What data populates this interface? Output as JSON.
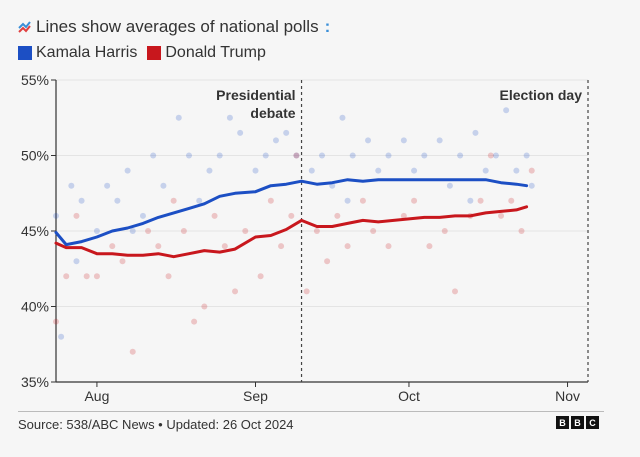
{
  "header": {
    "icon": "trend-lines-icon",
    "title": "Lines show averages of national polls",
    "colon": ":"
  },
  "legend": [
    {
      "label": "Kamala Harris",
      "color": "#1c4fc4"
    },
    {
      "label": "Donald Trump",
      "color": "#c8171d"
    }
  ],
  "footer": {
    "source": "Source: 538/ABC News • Updated: 26 Oct 2024",
    "logo": [
      "B",
      "B",
      "C"
    ]
  },
  "chart_data": {
    "type": "line",
    "title": "Lines show averages of national polls",
    "xlabel": "",
    "ylabel": "",
    "xlim": [
      "2024-07-24",
      "2024-11-05"
    ],
    "ylim": [
      35,
      55
    ],
    "yticks": [
      35,
      40,
      45,
      50,
      55
    ],
    "ytick_labels": [
      "35%",
      "40%",
      "45%",
      "50%",
      "55%"
    ],
    "xticks": [
      "2024-08-01",
      "2024-09-01",
      "2024-10-01",
      "2024-11-01"
    ],
    "xtick_labels": [
      "Aug",
      "Sep",
      "Oct",
      "Nov"
    ],
    "grid": true,
    "legend_position": "top-left",
    "annotations": [
      {
        "date": "2024-09-10",
        "label_lines": [
          "Presidential",
          "debate"
        ],
        "style": "dashed-vertical"
      },
      {
        "date": "2024-11-05",
        "label_lines": [
          "Election day"
        ],
        "style": "dashed-vertical"
      }
    ],
    "series": [
      {
        "name": "Kamala Harris",
        "color": "#1c4fc4",
        "average": [
          [
            "2024-07-24",
            44.9
          ],
          [
            "2024-07-26",
            44.1
          ],
          [
            "2024-07-29",
            44.3
          ],
          [
            "2024-08-01",
            44.6
          ],
          [
            "2024-08-04",
            45.0
          ],
          [
            "2024-08-07",
            45.2
          ],
          [
            "2024-08-10",
            45.5
          ],
          [
            "2024-08-13",
            45.9
          ],
          [
            "2024-08-16",
            46.2
          ],
          [
            "2024-08-19",
            46.5
          ],
          [
            "2024-08-22",
            46.8
          ],
          [
            "2024-08-25",
            47.3
          ],
          [
            "2024-08-28",
            47.5
          ],
          [
            "2024-09-01",
            47.6
          ],
          [
            "2024-09-04",
            48.0
          ],
          [
            "2024-09-07",
            48.1
          ],
          [
            "2024-09-10",
            48.3
          ],
          [
            "2024-09-13",
            48.1
          ],
          [
            "2024-09-16",
            48.2
          ],
          [
            "2024-09-19",
            48.4
          ],
          [
            "2024-09-22",
            48.3
          ],
          [
            "2024-09-25",
            48.4
          ],
          [
            "2024-09-28",
            48.4
          ],
          [
            "2024-10-01",
            48.4
          ],
          [
            "2024-10-04",
            48.4
          ],
          [
            "2024-10-07",
            48.4
          ],
          [
            "2024-10-10",
            48.4
          ],
          [
            "2024-10-13",
            48.4
          ],
          [
            "2024-10-16",
            48.4
          ],
          [
            "2024-10-19",
            48.2
          ],
          [
            "2024-10-22",
            48.1
          ],
          [
            "2024-10-24",
            48.0
          ]
        ],
        "polls": [
          [
            "2024-07-24",
            46
          ],
          [
            "2024-07-25",
            38
          ],
          [
            "2024-07-27",
            48
          ],
          [
            "2024-07-29",
            47
          ],
          [
            "2024-08-01",
            45
          ],
          [
            "2024-08-03",
            48
          ],
          [
            "2024-08-05",
            47
          ],
          [
            "2024-08-07",
            49
          ],
          [
            "2024-08-10",
            46
          ],
          [
            "2024-08-12",
            50
          ],
          [
            "2024-08-14",
            48
          ],
          [
            "2024-08-17",
            52.5
          ],
          [
            "2024-08-19",
            50
          ],
          [
            "2024-08-21",
            47
          ],
          [
            "2024-08-23",
            49
          ],
          [
            "2024-08-25",
            50
          ],
          [
            "2024-08-27",
            52.5
          ],
          [
            "2024-08-29",
            51.5
          ],
          [
            "2024-09-01",
            49
          ],
          [
            "2024-09-03",
            50
          ],
          [
            "2024-09-05",
            51
          ],
          [
            "2024-09-07",
            51.5
          ],
          [
            "2024-09-09",
            50
          ],
          [
            "2024-09-12",
            49
          ],
          [
            "2024-09-14",
            50
          ],
          [
            "2024-09-16",
            48
          ],
          [
            "2024-09-18",
            52.5
          ],
          [
            "2024-09-20",
            50
          ],
          [
            "2024-09-23",
            51
          ],
          [
            "2024-09-25",
            49
          ],
          [
            "2024-09-27",
            50
          ],
          [
            "2024-09-30",
            51
          ],
          [
            "2024-10-02",
            49
          ],
          [
            "2024-10-04",
            50
          ],
          [
            "2024-10-07",
            51
          ],
          [
            "2024-10-09",
            48
          ],
          [
            "2024-10-11",
            50
          ],
          [
            "2024-10-14",
            51.5
          ],
          [
            "2024-10-16",
            49
          ],
          [
            "2024-10-18",
            50
          ],
          [
            "2024-10-20",
            53
          ],
          [
            "2024-10-22",
            49
          ],
          [
            "2024-10-24",
            50
          ],
          [
            "2024-10-25",
            48
          ],
          [
            "2024-07-28",
            43
          ],
          [
            "2024-08-08",
            45
          ],
          [
            "2024-09-19",
            47
          ],
          [
            "2024-10-13",
            47
          ]
        ]
      },
      {
        "name": "Donald Trump",
        "color": "#c8171d",
        "average": [
          [
            "2024-07-24",
            44.2
          ],
          [
            "2024-07-26",
            43.9
          ],
          [
            "2024-07-29",
            43.9
          ],
          [
            "2024-08-01",
            43.5
          ],
          [
            "2024-08-04",
            43.5
          ],
          [
            "2024-08-07",
            43.4
          ],
          [
            "2024-08-10",
            43.4
          ],
          [
            "2024-08-13",
            43.5
          ],
          [
            "2024-08-16",
            43.3
          ],
          [
            "2024-08-19",
            43.5
          ],
          [
            "2024-08-22",
            43.7
          ],
          [
            "2024-08-25",
            43.6
          ],
          [
            "2024-08-28",
            43.8
          ],
          [
            "2024-09-01",
            44.6
          ],
          [
            "2024-09-04",
            44.7
          ],
          [
            "2024-09-07",
            45.1
          ],
          [
            "2024-09-10",
            45.7
          ],
          [
            "2024-09-13",
            45.3
          ],
          [
            "2024-09-16",
            45.3
          ],
          [
            "2024-09-19",
            45.5
          ],
          [
            "2024-09-22",
            45.7
          ],
          [
            "2024-09-25",
            45.6
          ],
          [
            "2024-09-28",
            45.7
          ],
          [
            "2024-10-01",
            45.8
          ],
          [
            "2024-10-04",
            45.9
          ],
          [
            "2024-10-07",
            45.9
          ],
          [
            "2024-10-10",
            46.0
          ],
          [
            "2024-10-13",
            46.0
          ],
          [
            "2024-10-16",
            46.2
          ],
          [
            "2024-10-19",
            46.3
          ],
          [
            "2024-10-22",
            46.4
          ],
          [
            "2024-10-24",
            46.6
          ]
        ],
        "polls": [
          [
            "2024-07-24",
            39
          ],
          [
            "2024-07-26",
            42
          ],
          [
            "2024-07-28",
            46
          ],
          [
            "2024-07-30",
            42
          ],
          [
            "2024-08-01",
            42
          ],
          [
            "2024-08-04",
            44
          ],
          [
            "2024-08-06",
            43
          ],
          [
            "2024-08-08",
            37
          ],
          [
            "2024-08-11",
            45
          ],
          [
            "2024-08-13",
            44
          ],
          [
            "2024-08-15",
            42
          ],
          [
            "2024-08-18",
            45
          ],
          [
            "2024-08-20",
            39
          ],
          [
            "2024-08-22",
            40
          ],
          [
            "2024-08-24",
            46
          ],
          [
            "2024-08-26",
            44
          ],
          [
            "2024-08-28",
            41
          ],
          [
            "2024-08-30",
            45
          ],
          [
            "2024-09-02",
            42
          ],
          [
            "2024-09-04",
            47
          ],
          [
            "2024-09-06",
            44
          ],
          [
            "2024-09-08",
            46
          ],
          [
            "2024-09-11",
            41
          ],
          [
            "2024-09-13",
            45
          ],
          [
            "2024-09-15",
            43
          ],
          [
            "2024-09-17",
            46
          ],
          [
            "2024-09-19",
            44
          ],
          [
            "2024-09-22",
            47
          ],
          [
            "2024-09-24",
            45
          ],
          [
            "2024-09-27",
            44
          ],
          [
            "2024-09-30",
            46
          ],
          [
            "2024-10-02",
            47
          ],
          [
            "2024-10-05",
            44
          ],
          [
            "2024-10-08",
            45
          ],
          [
            "2024-10-10",
            41
          ],
          [
            "2024-10-13",
            46
          ],
          [
            "2024-10-15",
            47
          ],
          [
            "2024-10-17",
            50
          ],
          [
            "2024-10-19",
            46
          ],
          [
            "2024-10-21",
            47
          ],
          [
            "2024-10-23",
            45
          ],
          [
            "2024-10-25",
            49
          ],
          [
            "2024-08-16",
            47
          ],
          [
            "2024-09-09",
            50
          ]
        ]
      }
    ]
  }
}
